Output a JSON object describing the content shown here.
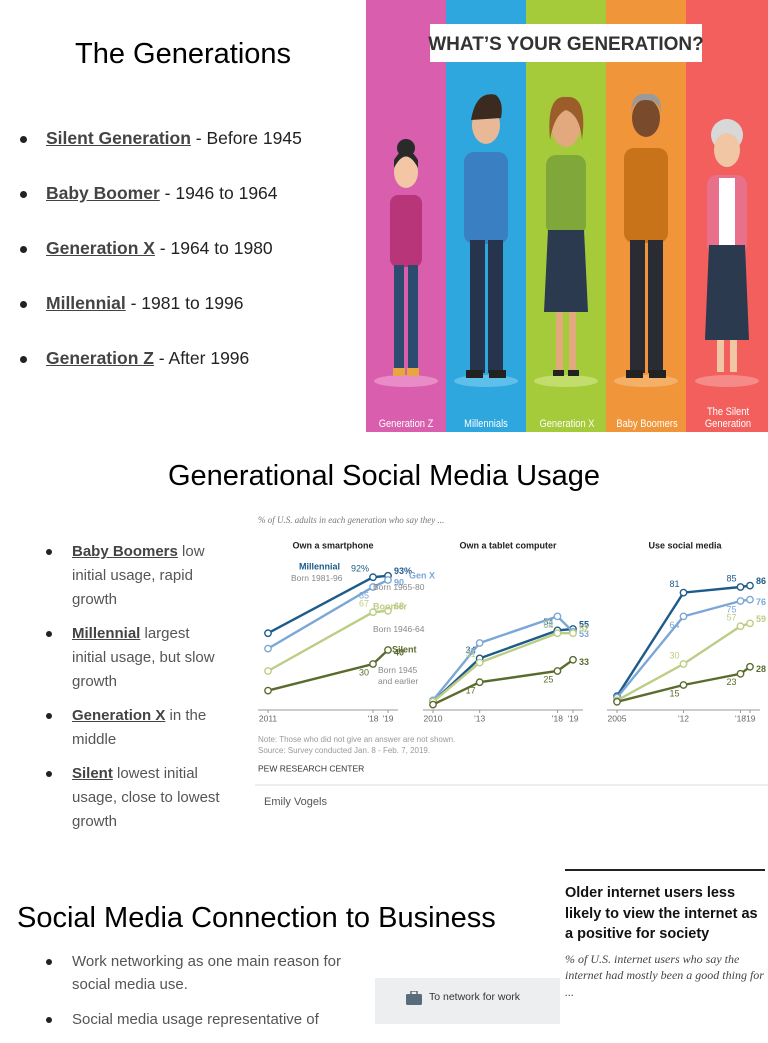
{
  "slide1": {
    "title": "The Generations",
    "bullets": [
      {
        "term": "Silent Generation",
        "rest": " - Before 1945"
      },
      {
        "term": "Baby Boomer",
        "rest": "  - 1946 to 1964"
      },
      {
        "term": "Generation X",
        "rest": " - 1964 to 1980"
      },
      {
        "term": "Millennial",
        "rest": " - 1981 to 1996"
      },
      {
        "term": "Generation Z",
        "rest": " - After 1996"
      }
    ],
    "image": {
      "banner": "WHAT’S YOUR GENERATION?",
      "labels": [
        "Generation Z",
        "Millennials",
        "Generation X",
        "Baby Boomers",
        "The Silent Generation"
      ]
    }
  },
  "slide2": {
    "title": "Generational Social Media Usage",
    "bullets": [
      {
        "term": "Baby Boomers",
        "rest": " low initial usage, rapid growth"
      },
      {
        "term": "Millennial",
        "rest": " largest initial usage, but slow growth"
      },
      {
        "term": "Generation X",
        "rest": " in the middle"
      },
      {
        "term": "Silent",
        "rest": " lowest initial usage, close to lowest growth"
      }
    ],
    "chart_subtitle": "% of U.S. adults in each generation who say they ...",
    "note": "Note: Those who did not give an answer are not shown.",
    "source": "Source: Survey conducted Jan. 8 - Feb. 7, 2019.",
    "credit": "PEW RESEARCH CENTER",
    "author": "Emily Vogels"
  },
  "chart_data": [
    {
      "type": "line",
      "title": "Own a smartphone",
      "x": [
        2011,
        2018,
        2019
      ],
      "xlim": [
        2011,
        2019
      ],
      "xticks": [
        2011,
        {
          "value": 2018,
          "label": "'18"
        },
        {
          "value": 2019,
          "label": "'19"
        }
      ],
      "ylim": [
        0,
        100
      ],
      "series": [
        {
          "name": "Millennial",
          "born": "Born 1981-96",
          "color": "#1d5b8a",
          "values": [
            52,
            92,
            93
          ],
          "value_labels": [
            null,
            "92%",
            "93%"
          ]
        },
        {
          "name": "Gen X",
          "born": "Born 1965-80",
          "color": "#7ba7d7",
          "values": [
            41,
            85,
            90
          ]
        },
        {
          "name": "Boomer",
          "born": "Born 1946-64",
          "color": "#bccd85",
          "values": [
            25,
            67,
            68
          ]
        },
        {
          "name": "Silent",
          "born": "Born 1945 and earlier",
          "color": "#5a6b2e",
          "values": [
            11,
            30,
            40
          ]
        }
      ]
    },
    {
      "type": "line",
      "title": "Own a tablet computer",
      "x": [
        2010,
        2013,
        2018,
        2019
      ],
      "xlim": [
        2010,
        2019
      ],
      "xticks": [
        2010,
        {
          "value": 2013,
          "label": "'13"
        },
        {
          "value": 2018,
          "label": "'18"
        },
        {
          "value": 2019,
          "label": "'19"
        }
      ],
      "ylim": [
        0,
        100
      ],
      "series": [
        {
          "color": "#1d5b8a",
          "values": [
            3,
            34,
            54,
            55
          ]
        },
        {
          "color": "#7ba7d7",
          "values": [
            4,
            45,
            64,
            53
          ]
        },
        {
          "color": "#bccd85",
          "values": [
            3,
            31,
            52,
            52
          ]
        },
        {
          "color": "#5a6b2e",
          "values": [
            1,
            17,
            25,
            33
          ]
        }
      ]
    },
    {
      "type": "line",
      "title": "Use social media",
      "x": [
        2005,
        2012,
        2018,
        2019
      ],
      "xlim": [
        2005,
        2019
      ],
      "xticks": [
        2005,
        {
          "value": 2012,
          "label": "'12"
        },
        {
          "value": 2018,
          "label": "'18"
        },
        {
          "value": 2019,
          "label": "'19"
        }
      ],
      "ylim": [
        0,
        100
      ],
      "series": [
        {
          "color": "#1d5b8a",
          "values": [
            7,
            81,
            85,
            86
          ]
        },
        {
          "color": "#7ba7d7",
          "values": [
            6,
            64,
            75,
            76
          ]
        },
        {
          "color": "#bccd85",
          "values": [
            4,
            30,
            57,
            59
          ]
        },
        {
          "color": "#5a6b2e",
          "values": [
            3,
            15,
            23,
            28
          ]
        }
      ]
    }
  ],
  "slide3": {
    "title": "Social Media Connection to Business",
    "bullets": [
      "Work networking as one main reason for social media use.",
      "Social media usage representative of"
    ],
    "inset": {
      "title": "Older internet users less likely to view the internet as a positive for society",
      "subtitle": "% of U.S. internet users who say the internet had mostly been a good thing for ...",
      "row": "To network for work"
    }
  }
}
